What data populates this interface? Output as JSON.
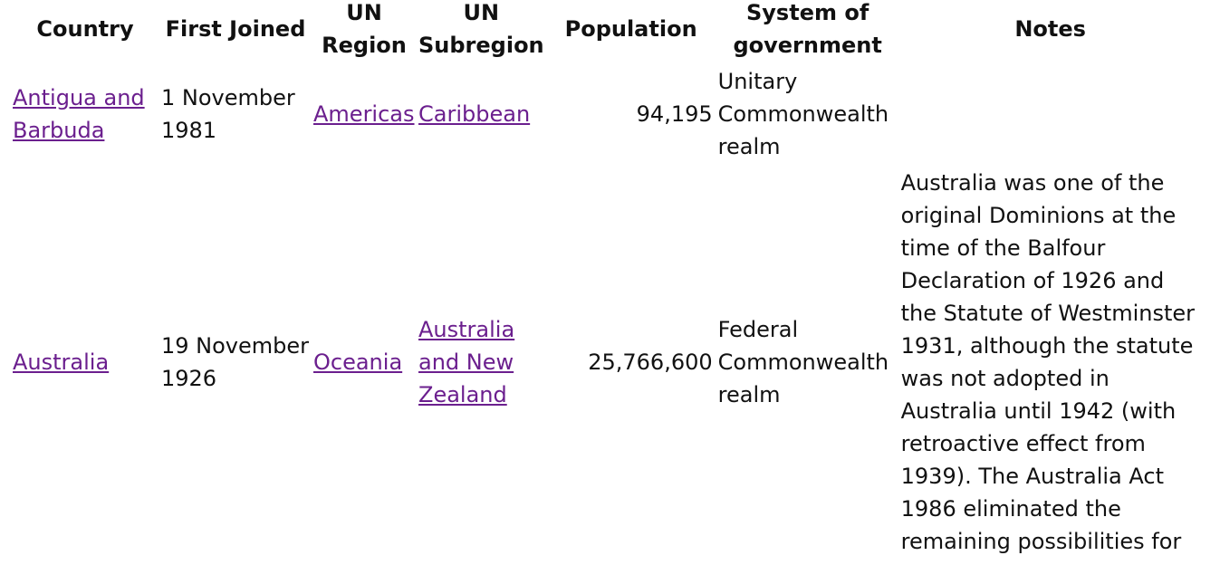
{
  "table": {
    "headers": {
      "country": "Country",
      "first_joined": "First Joined",
      "un_region": "UN Region",
      "un_subregion": "UN Subregion",
      "population": "Population",
      "system": "System of government",
      "notes": "Notes"
    },
    "rows": [
      {
        "country": "Antigua and Barbuda",
        "first_joined": "1 November 1981",
        "un_region": "Americas",
        "un_subregion": "Caribbean",
        "population": "94,195",
        "system": "Unitary Commonwealth realm",
        "notes": ""
      },
      {
        "country": "Australia",
        "first_joined": "19 November 1926",
        "un_region": "Oceania",
        "un_subregion": "Australia and New Zealand",
        "population": "25,766,600",
        "system": "Federal Commonwealth realm",
        "notes": "Australia was one of the original Dominions at the time of the Balfour Declaration of 1926 and the Statute of Westminster 1931, although the statute was not adopted in Australia until 1942 (with retroactive effect from 1939). The Australia Act 1986 eliminated the remaining possibilities for"
      }
    ]
  }
}
